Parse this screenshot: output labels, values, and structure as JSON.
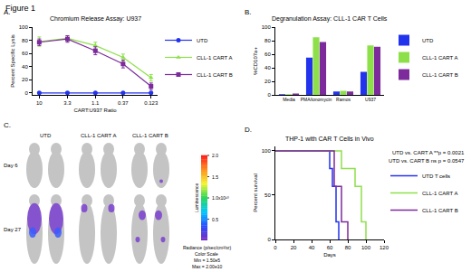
{
  "title": "Figure 1",
  "chart_data": [
    {
      "type": "line",
      "panel_label": "A.",
      "title": "Chromium Release Assay: U937",
      "x_label": "CART:U937 Ratio",
      "y_label": "Percent Specific Lysis",
      "x": [
        10,
        3.3,
        1.1,
        0.37,
        0.123
      ],
      "log": "x",
      "xlim": [
        13,
        0.095
      ],
      "xticks": [
        10,
        3.3,
        1.1,
        0.37,
        0.123
      ],
      "ylim": [
        -3,
        100
      ],
      "yticks": [
        0,
        20,
        40,
        60,
        80,
        100
      ],
      "grid": false,
      "legend": "upper right",
      "series": [
        {
          "name": "UTD",
          "color": "#2233ee",
          "marker": "circle",
          "values": [
            0,
            0,
            0,
            0,
            0
          ],
          "errors": [
            1,
            1,
            1,
            1,
            1
          ]
        },
        {
          "name": "CLL-1 CART A",
          "color": "#8ee04b",
          "marker": "triangle",
          "values": [
            78,
            83,
            72,
            54,
            23
          ],
          "errors": [
            7,
            4,
            5,
            5,
            5
          ]
        },
        {
          "name": "CLL-1 CART B",
          "color": "#7d2a9c",
          "marker": "square",
          "values": [
            77,
            82,
            64,
            44,
            10
          ],
          "errors": [
            5,
            5,
            6,
            6,
            5
          ]
        }
      ]
    },
    {
      "type": "bar",
      "panel_label": "B.",
      "title": "Degranulation Assay: CLL-1 CAR T Cells",
      "y_label": "%CD107a+",
      "categories": [
        "Media",
        "PMA/ionomycin",
        "Ramos",
        "U937"
      ],
      "ylim": [
        0,
        100
      ],
      "yticks": [
        0,
        20,
        40,
        60,
        80,
        100
      ],
      "grid": false,
      "legend": "upper right",
      "series": [
        {
          "name": "UTD",
          "color": "#2233ee",
          "values": [
            1,
            55,
            5,
            34
          ]
        },
        {
          "name": "CLL-1 CART A",
          "color": "#8ee04b",
          "values": [
            1,
            85,
            6,
            73
          ]
        },
        {
          "name": "CLL-1 CART B",
          "color": "#7d2a9c",
          "values": [
            2,
            78,
            5,
            71
          ]
        }
      ]
    },
    {
      "type": "image",
      "panel_label": "C.",
      "columns": [
        "UTD",
        "CLL-1 CART A",
        "CLL-1 CART B"
      ],
      "rows": [
        "Day 6",
        "Day 27"
      ],
      "colorbar": {
        "title": "Luminescence",
        "range": [
          150000,
          20000000000
        ],
        "ticks": [
          {
            "value": 5000000000,
            "label": "0.5"
          },
          {
            "value": 10000000000,
            "label": "1.0x10¹⁰"
          },
          {
            "value": 15000000000,
            "label": "1.5"
          },
          {
            "value": 20000000000,
            "label": "2.0"
          }
        ],
        "units": "Radiance (p/sec/cm²/sr)",
        "scale_title": "Color Scale",
        "min_label": "Min = 1.50e5",
        "max_label": "Max = 2.00e10"
      }
    },
    {
      "type": "line",
      "line_style": "step",
      "panel_label": "D.",
      "title": "THP-1 with CAR T Cells in Vivo",
      "x_label": "Days",
      "y_label": "Percent survival",
      "xlim": [
        0,
        120
      ],
      "xticks": [
        0,
        20,
        40,
        60,
        80,
        100,
        120
      ],
      "ylim": [
        0,
        105
      ],
      "yticks": [
        0,
        50,
        100
      ],
      "grid": false,
      "legend": "right",
      "annotations": [
        "UTD vs. CART A **p = 0.0021",
        "UTD vs. CART B ns p = 0.0547"
      ],
      "series": [
        {
          "name": "UTD T cells",
          "color": "#2233ee",
          "x": [
            0,
            60,
            63,
            67,
            70
          ],
          "values": [
            100,
            80,
            60,
            20,
            0
          ]
        },
        {
          "name": "CLL-1 CART A",
          "color": "#8ee04b",
          "x": [
            0,
            73,
            88,
            95,
            100
          ],
          "values": [
            100,
            80,
            60,
            20,
            0
          ]
        },
        {
          "name": "CLL-1 CART B",
          "color": "#7d2a9c",
          "x": [
            0,
            65,
            73,
            80
          ],
          "values": [
            100,
            60,
            20,
            0
          ]
        }
      ]
    }
  ]
}
